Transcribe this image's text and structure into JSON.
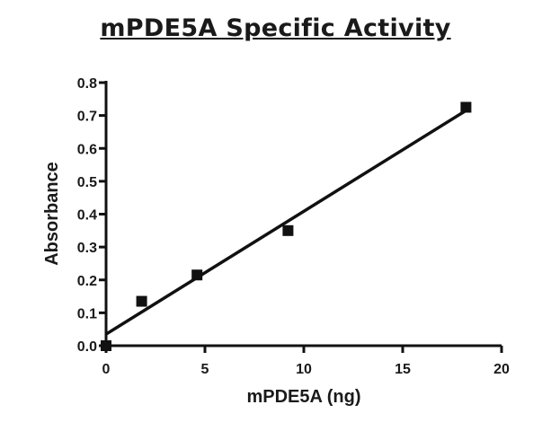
{
  "chart_data": {
    "type": "scatter",
    "title": "mPDE5A Specific Activity",
    "xlabel": "mPDE5A (ng)",
    "ylabel": "Absorbance",
    "xlim": [
      0,
      20
    ],
    "ylim": [
      0.0,
      0.8
    ],
    "x_ticks": [
      "0",
      "5",
      "10",
      "15",
      "20"
    ],
    "y_ticks": [
      "0.0",
      "0.1",
      "0.2",
      "0.3",
      "0.4",
      "0.5",
      "0.6",
      "0.7",
      "0.8"
    ],
    "grid": false,
    "legend": "none",
    "series": [
      {
        "x": [
          0,
          1.8,
          4.6,
          9.2,
          18.2
        ],
        "y": [
          0.0,
          0.135,
          0.215,
          0.35,
          0.725
        ]
      }
    ],
    "fit_line": {
      "type": "linear",
      "x": [
        0,
        18.2
      ],
      "y": [
        0.035,
        0.715
      ]
    },
    "colors": {
      "marks": "#111111",
      "text": "#1a1a1a"
    }
  }
}
